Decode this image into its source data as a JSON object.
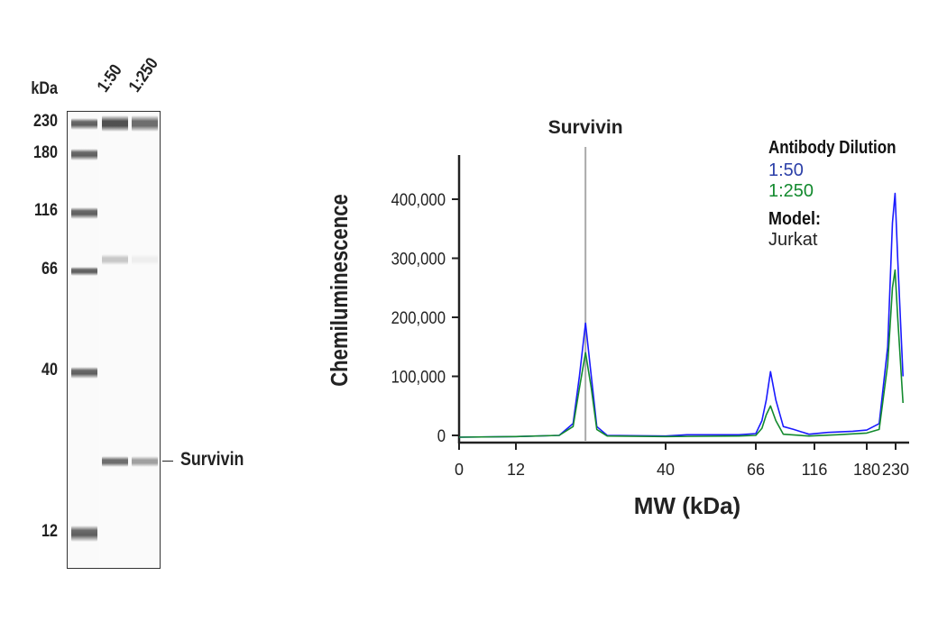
{
  "blot": {
    "unit_label": "kDa",
    "lanes": [
      "1:50",
      "1:250"
    ],
    "markers": [
      {
        "label": "230",
        "kda": 230
      },
      {
        "label": "180",
        "kda": 180
      },
      {
        "label": "116",
        "kda": 116
      },
      {
        "label": "66",
        "kda": 66
      },
      {
        "label": "40",
        "kda": 40
      },
      {
        "label": "12",
        "kda": 12
      }
    ],
    "target_label": "Survivin",
    "sample_bands": [
      {
        "kda": 230,
        "intensity": [
          0.85,
          0.7
        ]
      },
      {
        "kda": 76,
        "intensity": [
          0.25,
          0.06
        ]
      },
      {
        "kda": 21,
        "intensity": [
          0.7,
          0.45
        ]
      }
    ]
  },
  "chart_data": {
    "type": "line",
    "xlabel": "MW (kDa)",
    "ylabel": "Chemiluminescence",
    "x_ticks": [
      0,
      12,
      40,
      66,
      116,
      180,
      230
    ],
    "x_tick_labels": [
      "0",
      "12",
      "40",
      "66",
      "116",
      "180",
      "230"
    ],
    "y_ticks": [
      0,
      100000,
      200000,
      300000,
      400000
    ],
    "y_tick_labels": [
      "0",
      "100,000",
      "200,000",
      "300,000",
      "400,000"
    ],
    "ylim": [
      0,
      470000
    ],
    "grid": false,
    "annotation": {
      "label": "Survivin",
      "x": 21
    },
    "legend": {
      "title": "Antibody Dilution",
      "placement": "top-right",
      "model_label": "Model:",
      "model_value": "Jurkat"
    },
    "series": [
      {
        "name": "1:50",
        "color": "#1a1aff",
        "points": [
          [
            0,
            -3000
          ],
          [
            12,
            -2000
          ],
          [
            17,
            0
          ],
          [
            19,
            20000
          ],
          [
            20,
            100000
          ],
          [
            21,
            190000
          ],
          [
            22,
            100000
          ],
          [
            23,
            15000
          ],
          [
            25,
            0
          ],
          [
            40,
            -1000
          ],
          [
            45,
            1000
          ],
          [
            60,
            1000
          ],
          [
            66,
            3000
          ],
          [
            70,
            25000
          ],
          [
            73,
            60000
          ],
          [
            76,
            108000
          ],
          [
            80,
            60000
          ],
          [
            86,
            15000
          ],
          [
            95,
            10000
          ],
          [
            110,
            2000
          ],
          [
            130,
            5000
          ],
          [
            160,
            7000
          ],
          [
            180,
            9000
          ],
          [
            200,
            20000
          ],
          [
            215,
            150000
          ],
          [
            224,
            360000
          ],
          [
            229,
            410000
          ],
          [
            234,
            300000
          ],
          [
            245,
            100000
          ]
        ]
      },
      {
        "name": "1:250",
        "color": "#138a2e",
        "points": [
          [
            0,
            -3000
          ],
          [
            12,
            -2000
          ],
          [
            17,
            0
          ],
          [
            19,
            15000
          ],
          [
            20,
            80000
          ],
          [
            21,
            140000
          ],
          [
            22,
            80000
          ],
          [
            23,
            10000
          ],
          [
            25,
            -1000
          ],
          [
            40,
            -2000
          ],
          [
            60,
            -1000
          ],
          [
            66,
            0
          ],
          [
            70,
            12000
          ],
          [
            73,
            35000
          ],
          [
            76,
            50000
          ],
          [
            80,
            25000
          ],
          [
            86,
            2000
          ],
          [
            110,
            -1000
          ],
          [
            140,
            1000
          ],
          [
            180,
            4000
          ],
          [
            200,
            10000
          ],
          [
            215,
            120000
          ],
          [
            224,
            250000
          ],
          [
            229,
            280000
          ],
          [
            234,
            200000
          ],
          [
            245,
            55000
          ]
        ]
      }
    ]
  }
}
